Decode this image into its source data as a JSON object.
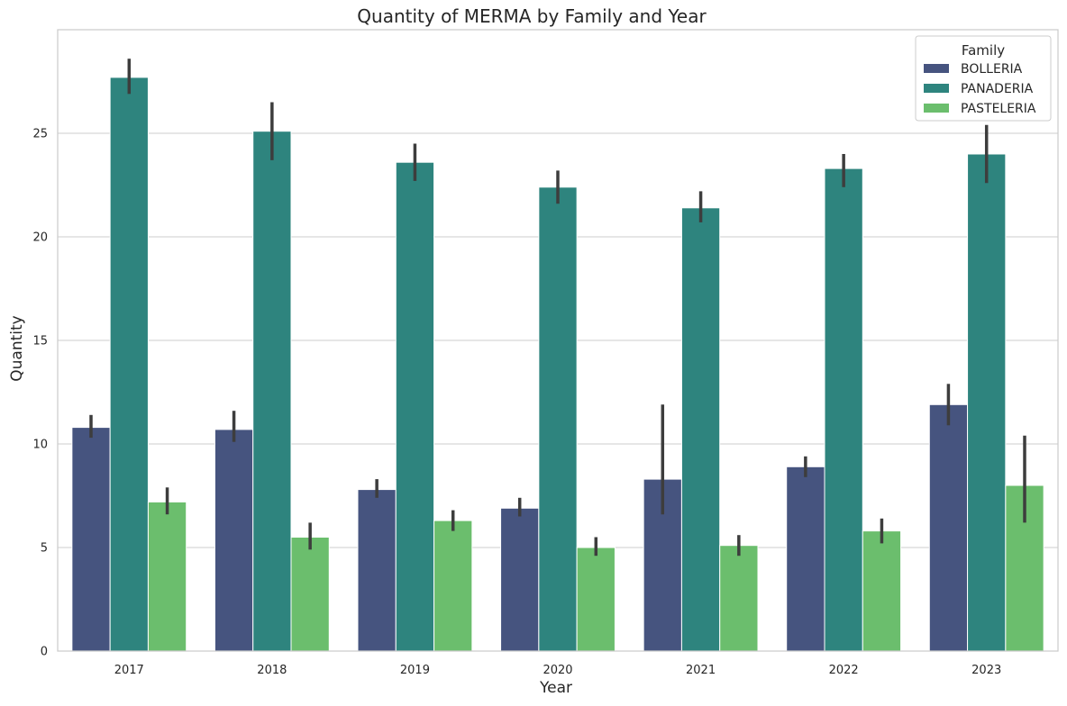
{
  "chart_data": {
    "type": "bar",
    "title": "Quantity of MERMA by Family and Year",
    "xlabel": "Year",
    "ylabel": "Quantity",
    "ylim": [
      0,
      30
    ],
    "yticks": [
      0,
      5,
      10,
      15,
      20,
      25
    ],
    "grid": true,
    "legend": {
      "title": "Family",
      "placement": "top-right"
    },
    "categories": [
      "2017",
      "2018",
      "2019",
      "2020",
      "2021",
      "2022",
      "2023"
    ],
    "series": [
      {
        "name": "BOLLERIA",
        "color": "#46547f",
        "values": [
          10.8,
          10.7,
          7.8,
          6.9,
          8.3,
          8.9,
          11.9
        ],
        "error_low": [
          10.3,
          10.1,
          7.4,
          6.5,
          6.6,
          8.4,
          10.9
        ],
        "error_high": [
          11.4,
          11.6,
          8.3,
          7.4,
          11.9,
          9.4,
          12.9
        ]
      },
      {
        "name": "PANADERIA",
        "color": "#2e847e",
        "values": [
          27.7,
          25.1,
          23.6,
          22.4,
          21.4,
          23.3,
          24.0
        ],
        "error_low": [
          26.9,
          23.7,
          22.7,
          21.6,
          20.7,
          22.4,
          22.6
        ],
        "error_high": [
          28.6,
          26.5,
          24.5,
          23.2,
          22.2,
          24.0,
          25.4
        ]
      },
      {
        "name": "PASTELERIA",
        "color": "#6bbe6d",
        "values": [
          7.2,
          5.5,
          6.3,
          5.0,
          5.1,
          5.8,
          8.0
        ],
        "error_low": [
          6.6,
          4.9,
          5.8,
          4.6,
          4.6,
          5.2,
          6.2
        ],
        "error_high": [
          7.9,
          6.2,
          6.8,
          5.5,
          5.6,
          6.4,
          10.4
        ]
      }
    ]
  }
}
